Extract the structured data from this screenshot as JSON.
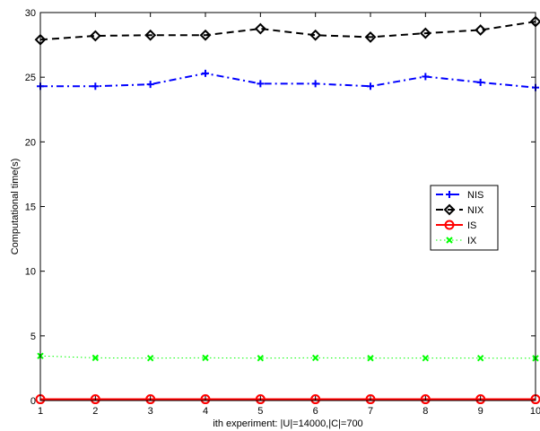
{
  "chart_data": {
    "type": "line",
    "xlabel": "ith experiment: |U|=14000,|C|=700",
    "ylabel": "Computational time(s)",
    "xlim": [
      1,
      10
    ],
    "ylim": [
      0,
      30
    ],
    "xticks": [
      1,
      2,
      3,
      4,
      5,
      6,
      7,
      8,
      9,
      10
    ],
    "yticks": [
      0,
      5,
      10,
      15,
      20,
      25,
      30
    ],
    "grid": false,
    "legend_position": "right",
    "x": [
      1,
      2,
      3,
      4,
      5,
      6,
      7,
      8,
      9,
      10
    ],
    "series": [
      {
        "name": "NIS",
        "color": "#0000ff",
        "dash": "dash-dot",
        "marker": "plus",
        "values": [
          24.3,
          24.3,
          24.45,
          25.3,
          24.5,
          24.5,
          24.3,
          25.05,
          24.6,
          24.2
        ]
      },
      {
        "name": "NIX",
        "color": "#000000",
        "dash": "dashed",
        "marker": "diamond",
        "values": [
          27.9,
          28.2,
          28.25,
          28.25,
          28.75,
          28.25,
          28.1,
          28.4,
          28.65,
          29.3
        ]
      },
      {
        "name": "IS",
        "color": "#ff0000",
        "dash": "solid",
        "marker": "circle",
        "values": [
          0.1,
          0.1,
          0.1,
          0.1,
          0.1,
          0.1,
          0.1,
          0.1,
          0.1,
          0.1
        ]
      },
      {
        "name": "IX",
        "color": "#00ff00",
        "dash": "dotted",
        "marker": "x",
        "values": [
          3.45,
          3.3,
          3.28,
          3.3,
          3.28,
          3.3,
          3.28,
          3.28,
          3.28,
          3.27
        ]
      }
    ]
  }
}
